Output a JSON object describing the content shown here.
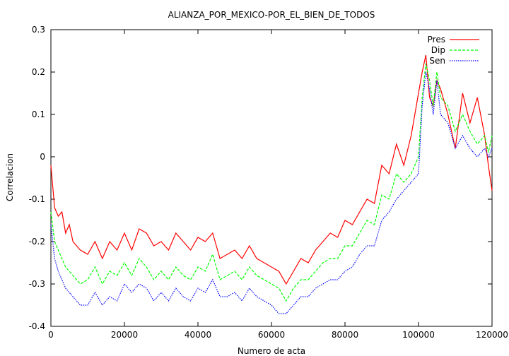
{
  "chart_data": {
    "type": "line",
    "title": "ALIANZA_POR_MEXICO-POR_EL_BIEN_DE_TODOS",
    "xlabel": "Numero de acta",
    "ylabel": "Correlacion",
    "xlim": [
      0,
      120000
    ],
    "ylim": [
      -0.4,
      0.3
    ],
    "xticks": [
      0,
      20000,
      40000,
      60000,
      80000,
      100000,
      120000
    ],
    "yticks": [
      -0.4,
      -0.3,
      -0.2,
      -0.1,
      0,
      0.1,
      0.2,
      0.3
    ],
    "xtick_labels": [
      "0",
      "20000",
      "40000",
      "60000",
      "80000",
      "100000",
      "120000"
    ],
    "ytick_labels": [
      "-0.4",
      "-0.3",
      "-0.2",
      "-0.1",
      "0",
      "0.1",
      "0.2",
      "0.3"
    ],
    "grid": false,
    "legend_position": "top-right",
    "series": [
      {
        "name": "Pres",
        "color": "#ff0000",
        "dash": "solid",
        "x": [
          0,
          1000,
          2000,
          3000,
          4000,
          5000,
          6000,
          8000,
          10000,
          12000,
          14000,
          16000,
          18000,
          20000,
          22000,
          24000,
          26000,
          28000,
          30000,
          32000,
          34000,
          36000,
          38000,
          40000,
          42000,
          44000,
          46000,
          48000,
          50000,
          52000,
          54000,
          56000,
          58000,
          60000,
          62000,
          64000,
          66000,
          68000,
          70000,
          72000,
          74000,
          76000,
          78000,
          80000,
          82000,
          84000,
          86000,
          88000,
          90000,
          92000,
          94000,
          96000,
          98000,
          100000,
          101000,
          102000,
          103000,
          104000,
          105000,
          106000,
          108000,
          110000,
          112000,
          114000,
          116000,
          118000,
          119000,
          120000
        ],
        "y": [
          -0.02,
          -0.12,
          -0.14,
          -0.13,
          -0.18,
          -0.16,
          -0.2,
          -0.22,
          -0.23,
          -0.2,
          -0.24,
          -0.2,
          -0.22,
          -0.18,
          -0.22,
          -0.17,
          -0.18,
          -0.21,
          -0.2,
          -0.22,
          -0.18,
          -0.2,
          -0.22,
          -0.19,
          -0.2,
          -0.18,
          -0.24,
          -0.23,
          -0.22,
          -0.24,
          -0.21,
          -0.24,
          -0.25,
          -0.26,
          -0.27,
          -0.3,
          -0.27,
          -0.24,
          -0.25,
          -0.22,
          -0.2,
          -0.18,
          -0.19,
          -0.15,
          -0.16,
          -0.13,
          -0.1,
          -0.11,
          -0.02,
          -0.04,
          0.03,
          -0.02,
          0.05,
          0.15,
          0.2,
          0.24,
          0.14,
          0.12,
          0.18,
          0.16,
          0.1,
          0.02,
          0.15,
          0.08,
          0.14,
          0.05,
          -0.02,
          -0.08
        ]
      },
      {
        "name": "Dip",
        "color": "#00ff00",
        "dash": "dashed",
        "x": [
          0,
          1000,
          2000,
          3000,
          4000,
          5000,
          6000,
          8000,
          10000,
          12000,
          14000,
          16000,
          18000,
          20000,
          22000,
          24000,
          26000,
          28000,
          30000,
          32000,
          34000,
          36000,
          38000,
          40000,
          42000,
          44000,
          46000,
          48000,
          50000,
          52000,
          54000,
          56000,
          58000,
          60000,
          62000,
          64000,
          66000,
          68000,
          70000,
          72000,
          74000,
          76000,
          78000,
          80000,
          82000,
          84000,
          86000,
          88000,
          90000,
          92000,
          94000,
          96000,
          98000,
          100000,
          101000,
          102000,
          103000,
          104000,
          105000,
          106000,
          108000,
          110000,
          112000,
          114000,
          116000,
          118000,
          119000,
          120000
        ],
        "y": [
          -0.13,
          -0.2,
          -0.22,
          -0.24,
          -0.26,
          -0.27,
          -0.28,
          -0.3,
          -0.29,
          -0.26,
          -0.3,
          -0.27,
          -0.28,
          -0.25,
          -0.28,
          -0.24,
          -0.26,
          -0.29,
          -0.27,
          -0.29,
          -0.26,
          -0.28,
          -0.29,
          -0.26,
          -0.27,
          -0.23,
          -0.29,
          -0.28,
          -0.27,
          -0.29,
          -0.26,
          -0.28,
          -0.29,
          -0.3,
          -0.31,
          -0.34,
          -0.31,
          -0.29,
          -0.29,
          -0.27,
          -0.25,
          -0.24,
          -0.24,
          -0.21,
          -0.21,
          -0.18,
          -0.15,
          -0.16,
          -0.09,
          -0.1,
          -0.04,
          -0.06,
          -0.04,
          0.0,
          0.14,
          0.22,
          0.18,
          0.12,
          0.2,
          0.14,
          0.12,
          0.06,
          0.1,
          0.06,
          0.03,
          0.05,
          0.01,
          0.05
        ]
      },
      {
        "name": "Sen",
        "color": "#0000ff",
        "dash": "dotted",
        "x": [
          0,
          1000,
          2000,
          3000,
          4000,
          5000,
          6000,
          8000,
          10000,
          12000,
          14000,
          16000,
          18000,
          20000,
          22000,
          24000,
          26000,
          28000,
          30000,
          32000,
          34000,
          36000,
          38000,
          40000,
          42000,
          44000,
          46000,
          48000,
          50000,
          52000,
          54000,
          56000,
          58000,
          60000,
          62000,
          64000,
          66000,
          68000,
          70000,
          72000,
          74000,
          76000,
          78000,
          80000,
          82000,
          84000,
          86000,
          88000,
          90000,
          92000,
          94000,
          96000,
          98000,
          100000,
          101000,
          102000,
          103000,
          104000,
          105000,
          106000,
          108000,
          110000,
          112000,
          114000,
          116000,
          118000,
          119000,
          120000
        ],
        "y": [
          -0.16,
          -0.24,
          -0.27,
          -0.29,
          -0.31,
          -0.32,
          -0.33,
          -0.35,
          -0.35,
          -0.32,
          -0.35,
          -0.33,
          -0.34,
          -0.3,
          -0.32,
          -0.3,
          -0.31,
          -0.34,
          -0.32,
          -0.34,
          -0.31,
          -0.33,
          -0.34,
          -0.31,
          -0.32,
          -0.29,
          -0.33,
          -0.33,
          -0.32,
          -0.34,
          -0.31,
          -0.33,
          -0.34,
          -0.35,
          -0.37,
          -0.37,
          -0.35,
          -0.33,
          -0.33,
          -0.31,
          -0.3,
          -0.29,
          -0.29,
          -0.27,
          -0.26,
          -0.23,
          -0.21,
          -0.21,
          -0.15,
          -0.13,
          -0.1,
          -0.08,
          -0.06,
          -0.04,
          0.12,
          0.2,
          0.16,
          0.1,
          0.18,
          0.1,
          0.08,
          0.02,
          0.05,
          0.02,
          0.0,
          0.02,
          0.0,
          0.02
        ]
      }
    ]
  }
}
